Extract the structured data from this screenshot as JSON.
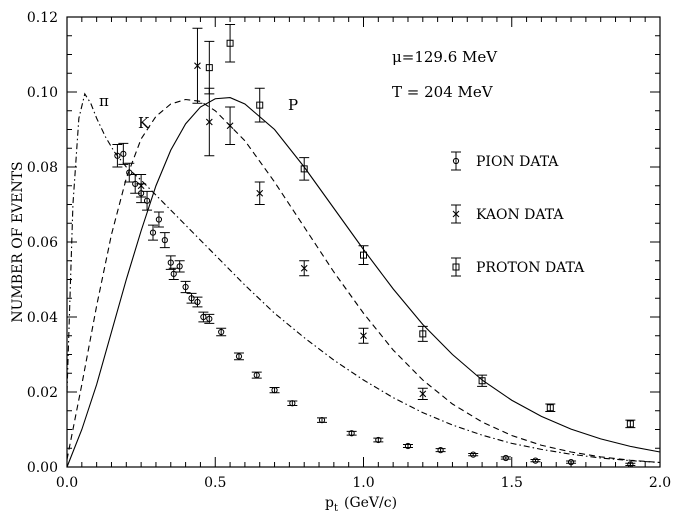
{
  "chart_data": {
    "type": "scatter",
    "xlabel_main": "p",
    "xlabel_sub": "t",
    "xlabel_unit": "(GeV/c)",
    "ylabel": "NUMBER OF EVENTS",
    "xlim": [
      0,
      2.0
    ],
    "ylim": [
      0,
      0.12
    ],
    "x_ticks": [
      "0.0",
      "0.5",
      "1.0",
      "1.5",
      "2.0"
    ],
    "y_ticks": [
      "0.00",
      "0.02",
      "0.04",
      "0.06",
      "0.08",
      "0.10",
      "0.12"
    ],
    "grid": false,
    "annotations": {
      "mu": "μ=129.6 MeV",
      "temp": "T = 204 MeV",
      "pi_label": "π",
      "k_label": "K",
      "p_label": "P"
    },
    "legend": {
      "placement": "right",
      "entries": [
        {
          "label": "PION DATA",
          "marker": "circle"
        },
        {
          "label": "KAON DATA",
          "marker": "cross"
        },
        {
          "label": "PROTON DATA",
          "marker": "square"
        }
      ]
    },
    "series": [
      {
        "kind": "scatter",
        "marker": "circle",
        "label_ref": "PION DATA",
        "points": [
          [
            0.17,
            0.083,
            0.003
          ],
          [
            0.19,
            0.0835,
            0.0028
          ],
          [
            0.21,
            0.0785,
            0.0025
          ],
          [
            0.23,
            0.0755,
            0.0025
          ],
          [
            0.25,
            0.073,
            0.0025
          ],
          [
            0.27,
            0.071,
            0.0025
          ],
          [
            0.29,
            0.0625,
            0.002
          ],
          [
            0.31,
            0.066,
            0.002
          ],
          [
            0.33,
            0.0605,
            0.002
          ],
          [
            0.35,
            0.0545,
            0.0018
          ],
          [
            0.36,
            0.0515,
            0.0015
          ],
          [
            0.38,
            0.0535,
            0.0015
          ],
          [
            0.4,
            0.048,
            0.0015
          ],
          [
            0.42,
            0.045,
            0.0013
          ],
          [
            0.44,
            0.044,
            0.0013
          ],
          [
            0.46,
            0.04,
            0.0013
          ],
          [
            0.48,
            0.0395,
            0.0012
          ],
          [
            0.52,
            0.036,
            0.001
          ],
          [
            0.58,
            0.0295,
            0.0009
          ],
          [
            0.64,
            0.0245,
            0.0008
          ],
          [
            0.7,
            0.0205,
            0.0007
          ],
          [
            0.76,
            0.017,
            0.0006
          ],
          [
            0.86,
            0.0125,
            0.0006
          ],
          [
            0.96,
            0.009,
            0.0005
          ],
          [
            1.05,
            0.0072,
            0.0005
          ],
          [
            1.15,
            0.0056,
            0.0004
          ],
          [
            1.26,
            0.0045,
            0.0004
          ],
          [
            1.37,
            0.0033,
            0.0003
          ],
          [
            1.48,
            0.0024,
            0.0003
          ],
          [
            1.58,
            0.0017,
            0.0003
          ],
          [
            1.7,
            0.0013,
            0.0003
          ],
          [
            1.9,
            0.0007,
            0.0003
          ]
        ]
      },
      {
        "kind": "scatter",
        "marker": "cross",
        "label_ref": "KAON DATA",
        "points": [
          [
            0.25,
            0.075,
            0.003
          ],
          [
            0.44,
            0.107,
            0.01
          ],
          [
            0.48,
            0.092,
            0.009
          ],
          [
            0.55,
            0.091,
            0.005
          ],
          [
            0.65,
            0.073,
            0.003
          ],
          [
            0.8,
            0.053,
            0.002
          ],
          [
            1.0,
            0.035,
            0.002
          ],
          [
            1.2,
            0.0195,
            0.0015
          ]
        ]
      },
      {
        "kind": "scatter",
        "marker": "square",
        "label_ref": "PROTON DATA",
        "points": [
          [
            0.48,
            0.1065,
            0.007
          ],
          [
            0.55,
            0.113,
            0.005
          ],
          [
            0.65,
            0.0965,
            0.0045
          ],
          [
            0.8,
            0.0795,
            0.003
          ],
          [
            1.0,
            0.0565,
            0.0025
          ],
          [
            1.2,
            0.0355,
            0.002
          ],
          [
            1.4,
            0.023,
            0.0015
          ],
          [
            1.63,
            0.0158,
            0.001
          ],
          [
            1.9,
            0.0115,
            0.001
          ]
        ]
      },
      {
        "kind": "line",
        "style": "dashdot",
        "label_ref": "π",
        "points": [
          [
            0.0,
            0.02
          ],
          [
            0.02,
            0.07
          ],
          [
            0.04,
            0.093
          ],
          [
            0.06,
            0.0995
          ],
          [
            0.08,
            0.097
          ],
          [
            0.1,
            0.093
          ],
          [
            0.13,
            0.088
          ],
          [
            0.16,
            0.084
          ],
          [
            0.2,
            0.08
          ],
          [
            0.25,
            0.0765
          ],
          [
            0.3,
            0.0725
          ],
          [
            0.4,
            0.0645
          ],
          [
            0.5,
            0.0565
          ],
          [
            0.6,
            0.0485
          ],
          [
            0.7,
            0.041
          ],
          [
            0.8,
            0.0345
          ],
          [
            0.9,
            0.0285
          ],
          [
            1.0,
            0.0232
          ],
          [
            1.1,
            0.0185
          ],
          [
            1.2,
            0.0145
          ],
          [
            1.3,
            0.0112
          ],
          [
            1.4,
            0.0085
          ],
          [
            1.5,
            0.0063
          ],
          [
            1.6,
            0.0047
          ],
          [
            1.7,
            0.0034
          ],
          [
            1.8,
            0.0024
          ],
          [
            1.9,
            0.0017
          ],
          [
            2.0,
            0.0012
          ]
        ]
      },
      {
        "kind": "line",
        "style": "dashed",
        "label_ref": "K",
        "points": [
          [
            0.0,
            0.002
          ],
          [
            0.05,
            0.022
          ],
          [
            0.1,
            0.043
          ],
          [
            0.15,
            0.062
          ],
          [
            0.2,
            0.077
          ],
          [
            0.25,
            0.0875
          ],
          [
            0.3,
            0.0935
          ],
          [
            0.35,
            0.0968
          ],
          [
            0.4,
            0.098
          ],
          [
            0.45,
            0.0975
          ],
          [
            0.5,
            0.095
          ],
          [
            0.6,
            0.087
          ],
          [
            0.7,
            0.076
          ],
          [
            0.8,
            0.064
          ],
          [
            0.9,
            0.052
          ],
          [
            1.0,
            0.041
          ],
          [
            1.1,
            0.0312
          ],
          [
            1.2,
            0.0232
          ],
          [
            1.3,
            0.0168
          ],
          [
            1.4,
            0.012
          ],
          [
            1.5,
            0.0084
          ],
          [
            1.6,
            0.0058
          ],
          [
            1.7,
            0.004
          ],
          [
            1.8,
            0.0027
          ],
          [
            1.9,
            0.0018
          ],
          [
            2.0,
            0.0012
          ]
        ]
      },
      {
        "kind": "line",
        "style": "solid",
        "label_ref": "P",
        "points": [
          [
            0.0,
            0.0
          ],
          [
            0.05,
            0.01
          ],
          [
            0.1,
            0.022
          ],
          [
            0.15,
            0.036
          ],
          [
            0.2,
            0.05
          ],
          [
            0.25,
            0.063
          ],
          [
            0.3,
            0.075
          ],
          [
            0.35,
            0.0845
          ],
          [
            0.4,
            0.0915
          ],
          [
            0.45,
            0.096
          ],
          [
            0.5,
            0.0982
          ],
          [
            0.55,
            0.0985
          ],
          [
            0.6,
            0.0968
          ],
          [
            0.7,
            0.09
          ],
          [
            0.8,
            0.08
          ],
          [
            0.9,
            0.069
          ],
          [
            1.0,
            0.058
          ],
          [
            1.1,
            0.0475
          ],
          [
            1.2,
            0.038
          ],
          [
            1.3,
            0.03
          ],
          [
            1.4,
            0.0232
          ],
          [
            1.5,
            0.0178
          ],
          [
            1.6,
            0.0135
          ],
          [
            1.7,
            0.0101
          ],
          [
            1.8,
            0.0075
          ],
          [
            1.9,
            0.0055
          ],
          [
            2.0,
            0.004
          ]
        ]
      }
    ]
  }
}
